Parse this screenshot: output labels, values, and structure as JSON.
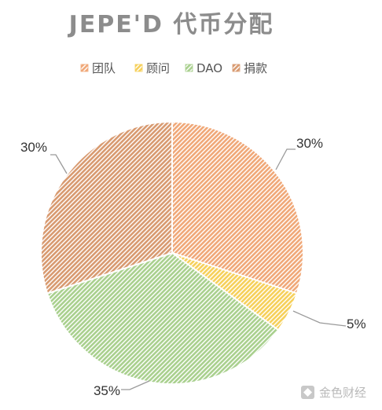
{
  "chart_data": {
    "type": "pie",
    "title": "JEPE'D 代币分配",
    "categories": [
      "团队",
      "顾问",
      "DAO",
      "捐款"
    ],
    "values": [
      30,
      5,
      35,
      30
    ],
    "labels": [
      "30%",
      "5%",
      "35%",
      "30%"
    ],
    "colors": [
      "#f0a878",
      "#f6d05a",
      "#a9d08e",
      "#d89a70"
    ],
    "legend_position": "top",
    "start_angle_deg": 0,
    "direction": "clockwise",
    "pattern": "diagonal-hatch"
  },
  "watermark": {
    "text": "金色财经",
    "icon": "diamond-logo-icon"
  }
}
